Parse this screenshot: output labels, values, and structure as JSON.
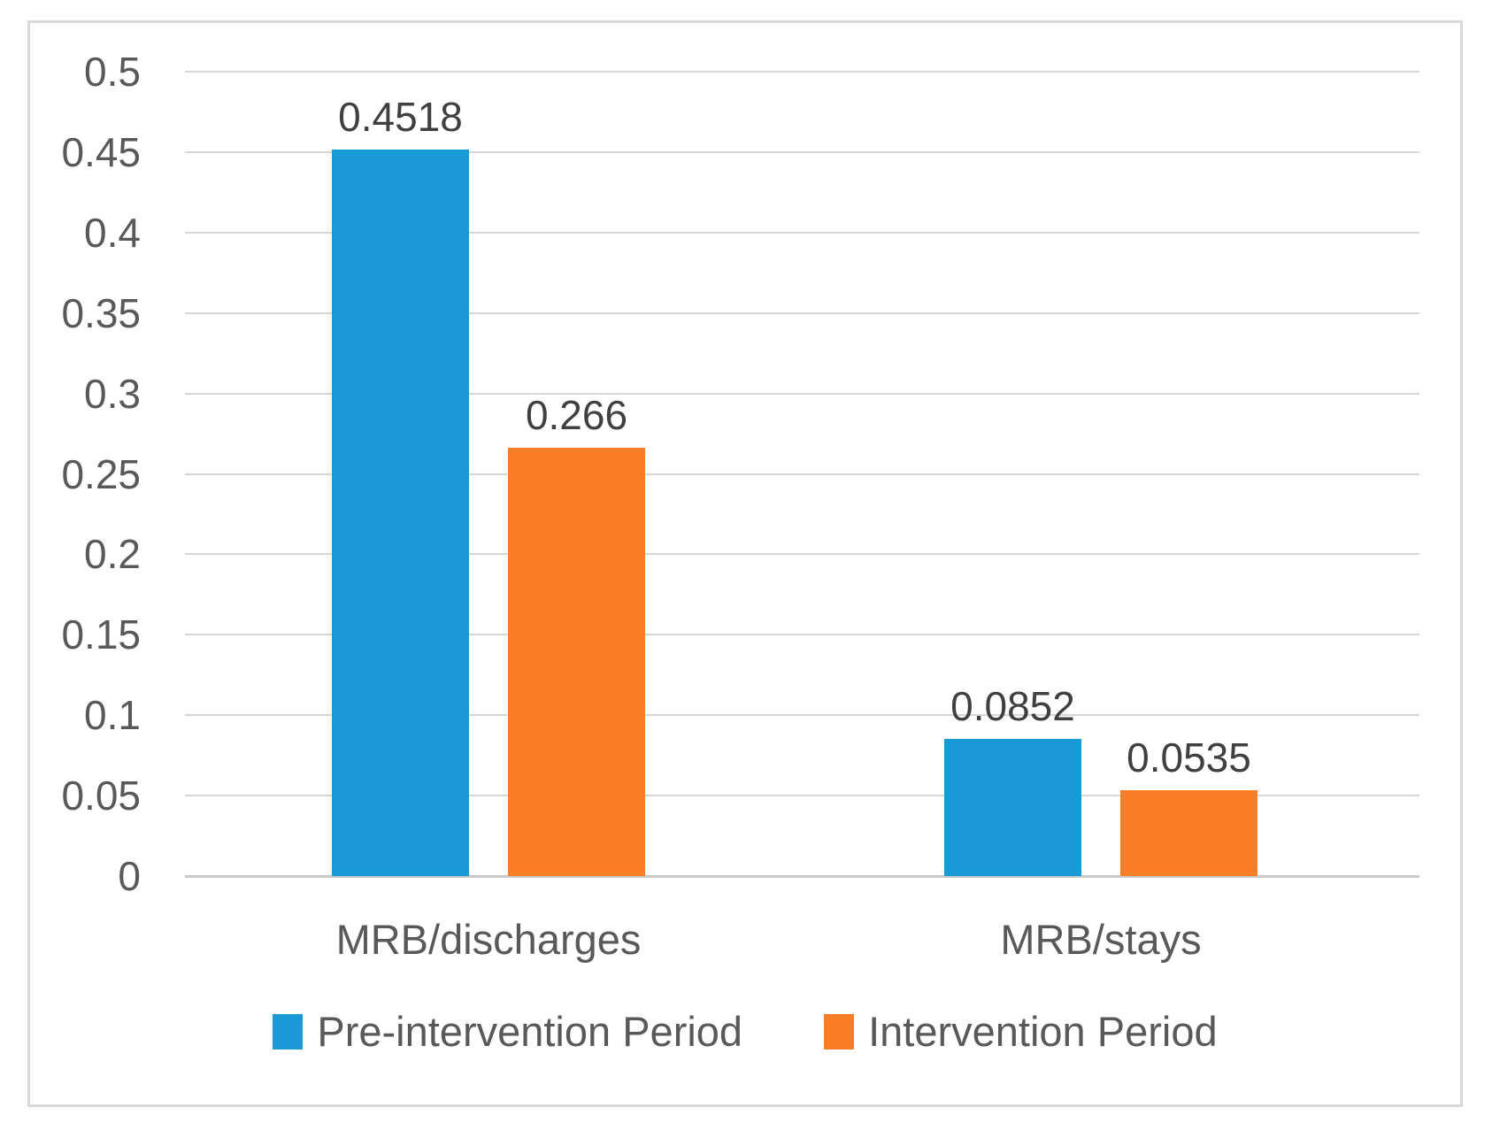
{
  "chart_data": {
    "type": "bar",
    "categories": [
      "MRB/discharges",
      "MRB/stays"
    ],
    "series": [
      {
        "name": "Pre-intervention Period",
        "color": "#199AD6",
        "values": [
          0.4518,
          0.0852
        ],
        "labels": [
          "0.4518",
          "0.0852"
        ]
      },
      {
        "name": "Intervention Period",
        "color": "#FB7D26",
        "values": [
          0.266,
          0.0535
        ],
        "labels": [
          "0.266",
          "0.0535"
        ]
      }
    ],
    "title": "",
    "xlabel": "",
    "ylabel": "",
    "ylim": [
      0,
      0.5
    ],
    "ytick_step": 0.05,
    "yticks": [
      "0.5",
      "0.45",
      "0.4",
      "0.35",
      "0.3",
      "0.25",
      "0.2",
      "0.15",
      "0.1",
      "0.05",
      "0"
    ],
    "grid": true,
    "legend_position": "bottom"
  },
  "colors": {
    "grid": "#D6D6D6",
    "axis": "#C9C9C9",
    "border": "#D9D9D9",
    "tick_text": "#595959",
    "data_label_text": "#404040"
  }
}
